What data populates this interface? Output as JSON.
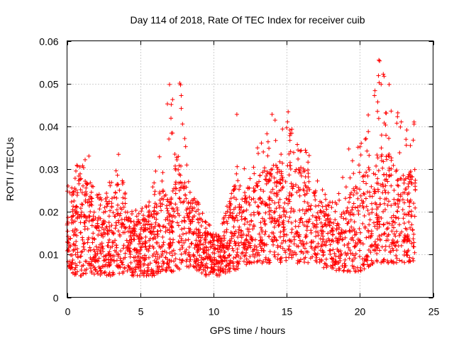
{
  "chart_data": {
    "type": "scatter",
    "title": "Day 114 of 2018, Rate Of TEC Index for receiver cuib",
    "xlabel": "GPS time / hours",
    "ylabel": "ROTI / TECUs",
    "xlim": [
      0,
      25
    ],
    "ylim": [
      0,
      0.06
    ],
    "xticks": [
      0,
      5,
      10,
      15,
      20,
      25
    ],
    "xtick_labels": [
      "0",
      "5",
      "10",
      "15",
      "20",
      "25"
    ],
    "yticks": [
      0,
      0.01,
      0.02,
      0.03,
      0.04,
      0.05,
      0.06
    ],
    "ytick_labels": [
      "0",
      "0.01",
      "0.02",
      "0.03",
      "0.04",
      "0.05",
      "0.06"
    ],
    "grid": true,
    "marker": "+",
    "color": "#ff0000",
    "envelope": {
      "description": "approximate ROTI envelope per half hour (low, typical high, peak)",
      "hours": [
        0,
        0.5,
        1,
        1.5,
        2,
        2.5,
        3,
        3.5,
        4,
        4.5,
        5,
        5.5,
        6,
        6.5,
        7,
        7.5,
        8,
        8.5,
        9,
        9.5,
        10,
        10.5,
        11,
        11.5,
        12,
        12.5,
        13,
        13.5,
        14,
        14.5,
        15,
        15.5,
        16,
        16.5,
        17,
        17.5,
        18,
        18.5,
        19,
        19.5,
        20,
        20.5,
        21,
        21.5,
        22,
        22.5,
        23,
        23.5
      ],
      "low": [
        0.006,
        0.005,
        0.005,
        0.006,
        0.005,
        0.005,
        0.005,
        0.005,
        0.006,
        0.005,
        0.005,
        0.005,
        0.005,
        0.006,
        0.006,
        0.006,
        0.007,
        0.007,
        0.006,
        0.005,
        0.005,
        0.005,
        0.006,
        0.006,
        0.007,
        0.008,
        0.008,
        0.008,
        0.008,
        0.008,
        0.008,
        0.008,
        0.008,
        0.008,
        0.008,
        0.007,
        0.006,
        0.006,
        0.006,
        0.006,
        0.006,
        0.007,
        0.008,
        0.008,
        0.008,
        0.008,
        0.008,
        0.008
      ],
      "high": [
        0.022,
        0.026,
        0.03,
        0.026,
        0.02,
        0.022,
        0.024,
        0.028,
        0.02,
        0.018,
        0.018,
        0.02,
        0.022,
        0.026,
        0.022,
        0.034,
        0.03,
        0.022,
        0.02,
        0.016,
        0.014,
        0.014,
        0.02,
        0.03,
        0.024,
        0.026,
        0.028,
        0.03,
        0.032,
        0.03,
        0.032,
        0.03,
        0.032,
        0.03,
        0.024,
        0.022,
        0.02,
        0.018,
        0.02,
        0.026,
        0.028,
        0.03,
        0.032,
        0.036,
        0.034,
        0.03,
        0.028,
        0.03
      ],
      "peak": [
        0.026,
        0.031,
        0.036,
        0.033,
        0.024,
        0.025,
        0.028,
        0.034,
        0.024,
        0.021,
        0.022,
        0.022,
        0.03,
        0.035,
        0.05,
        0.05,
        0.039,
        0.026,
        0.022,
        0.018,
        0.016,
        0.016,
        0.023,
        0.04,
        0.032,
        0.03,
        0.035,
        0.038,
        0.043,
        0.041,
        0.043,
        0.038,
        0.038,
        0.034,
        0.028,
        0.026,
        0.024,
        0.025,
        0.03,
        0.04,
        0.037,
        0.042,
        0.055,
        0.052,
        0.05,
        0.044,
        0.04,
        0.041
      ]
    },
    "notable_points": [
      {
        "x": 7.0,
        "y": 0.0498
      },
      {
        "x": 7.1,
        "y": 0.0419
      },
      {
        "x": 7.7,
        "y": 0.0501
      },
      {
        "x": 7.75,
        "y": 0.0497
      },
      {
        "x": 7.8,
        "y": 0.0472
      },
      {
        "x": 7.8,
        "y": 0.0442
      },
      {
        "x": 21.3,
        "y": 0.0555
      },
      {
        "x": 21.35,
        "y": 0.0553
      },
      {
        "x": 21.6,
        "y": 0.0522
      },
      {
        "x": 21.65,
        "y": 0.0517
      },
      {
        "x": 22.0,
        "y": 0.0498
      },
      {
        "x": 21.0,
        "y": 0.0472
      },
      {
        "x": 21.2,
        "y": 0.0435
      },
      {
        "x": 21.8,
        "y": 0.0431
      },
      {
        "x": 15.1,
        "y": 0.0434
      },
      {
        "x": 14.0,
        "y": 0.0428
      },
      {
        "x": 11.6,
        "y": 0.0428
      },
      {
        "x": 23.7,
        "y": 0.041
      },
      {
        "x": 23.7,
        "y": 0.0405
      }
    ]
  }
}
